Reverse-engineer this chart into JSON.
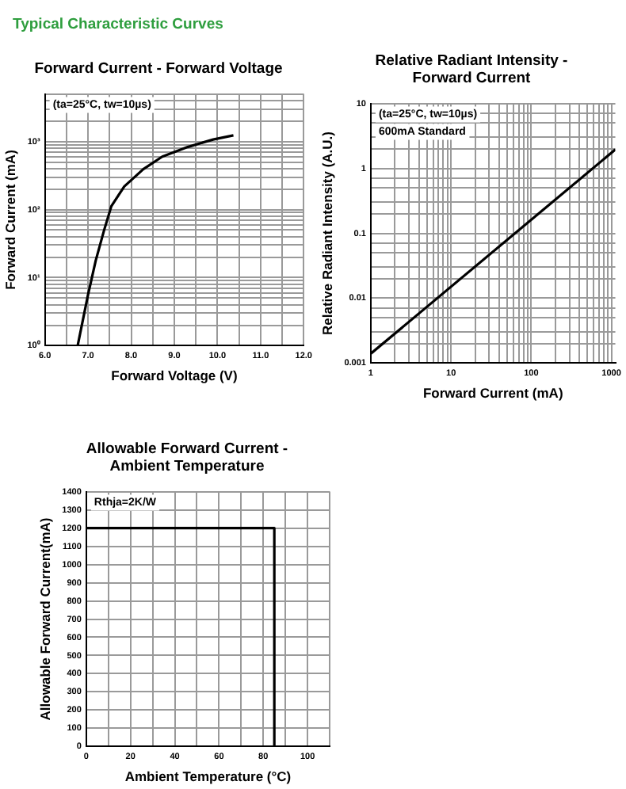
{
  "chart_data": [
    {
      "type": "other",
      "title": "Typical Characteristic Curves"
    },
    {
      "type": "line",
      "title": "Forward Current - Forward Voltage",
      "xlabel": "Forward Voltage (V)",
      "ylabel": "Forward Current (mA)",
      "log": "y",
      "grid": true,
      "marker": "none",
      "line_style": "solid",
      "annotations": [
        "(ta=25°C, tw=10µs)"
      ],
      "series": [
        {
          "color": "#000000",
          "x": [
            6.76,
            7.0,
            7.18,
            7.37,
            7.54,
            7.84,
            8.28,
            8.72,
            9.31,
            9.9,
            10.37
          ],
          "values": [
            1,
            5.6,
            18,
            49,
            112,
            219,
            392,
            600,
            830,
            1070,
            1230
          ]
        }
      ],
      "xlim": [
        6,
        12
      ],
      "xticks": [
        {
          "value": 6,
          "label": "6.0"
        },
        {
          "value": 6.5,
          "label": null
        },
        {
          "value": 7,
          "label": "7.0"
        },
        {
          "value": 7.5,
          "label": null
        },
        {
          "value": 8,
          "label": "8.0"
        },
        {
          "value": 8.5,
          "label": null
        },
        {
          "value": 9,
          "label": "9.0"
        },
        {
          "value": 9.5,
          "label": null
        },
        {
          "value": 10,
          "label": "10.0"
        },
        {
          "value": 10.5,
          "label": null
        },
        {
          "value": 11,
          "label": "11.0"
        },
        {
          "value": 11.5,
          "label": null
        },
        {
          "value": 12,
          "label": "12.0"
        }
      ],
      "ylim": [
        1,
        5000
      ],
      "yticks": [
        {
          "value": 1,
          "label": "10⁰"
        },
        {
          "value": 2,
          "label": null
        },
        {
          "value": 3,
          "label": null
        },
        {
          "value": 4,
          "label": null
        },
        {
          "value": 5,
          "label": null
        },
        {
          "value": 6,
          "label": null
        },
        {
          "value": 7,
          "label": null
        },
        {
          "value": 8,
          "label": null
        },
        {
          "value": 9,
          "label": null
        },
        {
          "value": 10,
          "label": "10¹"
        },
        {
          "value": 20,
          "label": null
        },
        {
          "value": 30,
          "label": null
        },
        {
          "value": 40,
          "label": null
        },
        {
          "value": 50,
          "label": null
        },
        {
          "value": 60,
          "label": null
        },
        {
          "value": 70,
          "label": null
        },
        {
          "value": 80,
          "label": null
        },
        {
          "value": 90,
          "label": null
        },
        {
          "value": 100,
          "label": "10²"
        },
        {
          "value": 200,
          "label": null
        },
        {
          "value": 300,
          "label": null
        },
        {
          "value": 400,
          "label": null
        },
        {
          "value": 500,
          "label": null
        },
        {
          "value": 600,
          "label": null
        },
        {
          "value": 700,
          "label": null
        },
        {
          "value": 800,
          "label": null
        },
        {
          "value": 900,
          "label": null
        },
        {
          "value": 1000,
          "label": "10³"
        },
        {
          "value": 2000,
          "label": null
        },
        {
          "value": 3000,
          "label": null
        },
        {
          "value": 4000,
          "label": null
        },
        {
          "value": 5000,
          "label": null
        }
      ]
    },
    {
      "type": "line",
      "title": "Relative Radiant Intensity - Forward Current",
      "xlabel": "Forward Current (mA)",
      "ylabel": "Relative Radiant Intensity (A.U.)",
      "log": "xy",
      "grid": true,
      "marker": "none",
      "line_style": "solid",
      "annotations": [
        "(ta=25°C, tw=10µs)",
        "600mA Standard"
      ],
      "series": [
        {
          "color": "#000000",
          "x": [
            1,
            1120
          ],
          "values": [
            0.0014,
            1.95
          ]
        }
      ],
      "xlim": [
        1,
        1120
      ],
      "xticks": [
        1,
        {
          "value": 2,
          "label": null
        },
        {
          "value": 3,
          "label": null
        },
        {
          "value": 4,
          "label": null
        },
        {
          "value": 5,
          "label": null
        },
        {
          "value": 6,
          "label": null
        },
        {
          "value": 7,
          "label": null
        },
        {
          "value": 8,
          "label": null
        },
        {
          "value": 9,
          "label": null
        },
        10,
        {
          "value": 20,
          "label": null
        },
        {
          "value": 30,
          "label": null
        },
        {
          "value": 40,
          "label": null
        },
        {
          "value": 50,
          "label": null
        },
        {
          "value": 60,
          "label": null
        },
        {
          "value": 70,
          "label": null
        },
        {
          "value": 80,
          "label": null
        },
        {
          "value": 90,
          "label": null
        },
        100,
        {
          "value": 200,
          "label": null
        },
        {
          "value": 300,
          "label": null
        },
        {
          "value": 400,
          "label": null
        },
        {
          "value": 500,
          "label": null
        },
        {
          "value": 600,
          "label": null
        },
        {
          "value": 700,
          "label": null
        },
        {
          "value": 800,
          "label": null
        },
        {
          "value": 900,
          "label": null
        },
        1000
      ],
      "ylim": [
        0.001,
        10
      ],
      "yticks": [
        0.001,
        {
          "value": 0.002,
          "label": null
        },
        {
          "value": 0.003,
          "label": null
        },
        {
          "value": 0.005,
          "label": null
        },
        {
          "value": 0.007,
          "label": null
        },
        0.01,
        {
          "value": 0.02,
          "label": null
        },
        {
          "value": 0.03,
          "label": null
        },
        {
          "value": 0.05,
          "label": null
        },
        {
          "value": 0.07,
          "label": null
        },
        0.1,
        {
          "value": 0.2,
          "label": null
        },
        {
          "value": 0.3,
          "label": null
        },
        {
          "value": 0.5,
          "label": null
        },
        {
          "value": 0.7,
          "label": null
        },
        1,
        {
          "value": 2,
          "label": null
        },
        {
          "value": 3,
          "label": null
        },
        {
          "value": 5,
          "label": null
        },
        {
          "value": 7,
          "label": null
        },
        10
      ]
    },
    {
      "type": "line",
      "title": "Allowable Forward Current - Ambient Temperature",
      "xlabel": "Ambient Temperature (°C)",
      "ylabel": "Allowable Forward Current(mA)",
      "grid": true,
      "marker": "none",
      "line_style": "solid",
      "annotations": [
        "Rthja=2K/W"
      ],
      "series": [
        {
          "color": "#000000",
          "x": [
            0,
            85,
            85
          ],
          "values": [
            1200,
            1200,
            0
          ]
        }
      ],
      "xlim": [
        0,
        110
      ],
      "xticks": [
        0,
        {
          "value": 10,
          "label": null
        },
        20,
        {
          "value": 30,
          "label": null
        },
        40,
        {
          "value": 50,
          "label": null
        },
        60,
        {
          "value": 70,
          "label": null
        },
        80,
        {
          "value": 90,
          "label": null
        },
        100,
        {
          "value": 110,
          "label": null
        }
      ],
      "ylim": [
        0,
        1400
      ],
      "yticks": [
        0,
        100,
        200,
        300,
        400,
        500,
        600,
        700,
        800,
        900,
        1000,
        1100,
        1200,
        1300,
        1400
      ]
    }
  ]
}
